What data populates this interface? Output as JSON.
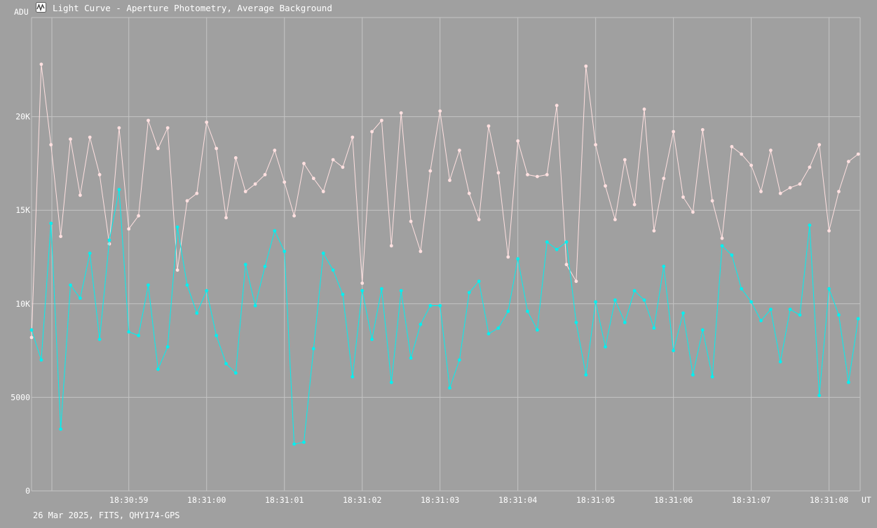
{
  "window": {
    "title": "Light Curve - Aperture Photometry, Average Background",
    "icon": "light-curve-app-icon"
  },
  "footer": {
    "text": "26 Mar 2025, FITS, QHY174-GPS"
  },
  "colors": {
    "background": "#a0a0a0",
    "grid": "#c4c4c4",
    "text": "#ffffff",
    "series_pink": "#ffe0e0",
    "series_cyan": "#00f0f0"
  },
  "chart_data": {
    "type": "line",
    "title": "Light Curve - Aperture Photometry, Average Background",
    "xlabel": "UT",
    "ylabel": "ADU",
    "ylim": [
      0,
      25300
    ],
    "xlim": [
      57.75,
      68.4
    ],
    "grid": true,
    "x_ticks": [
      {
        "value": 59,
        "label": "18:30:59"
      },
      {
        "value": 60,
        "label": "18:31:00"
      },
      {
        "value": 61,
        "label": "18:31:01"
      },
      {
        "value": 62,
        "label": "18:31:02"
      },
      {
        "value": 63,
        "label": "18:31:03"
      },
      {
        "value": 64,
        "label": "18:31:04"
      },
      {
        "value": 65,
        "label": "18:31:05"
      },
      {
        "value": 66,
        "label": "18:31:06"
      },
      {
        "value": 67,
        "label": "18:31:07"
      },
      {
        "value": 68,
        "label": "18:31:08"
      }
    ],
    "y_ticks": [
      {
        "value": 0,
        "label": "0"
      },
      {
        "value": 5000,
        "label": "5000"
      },
      {
        "value": 10000,
        "label": "10K"
      },
      {
        "value": 15000,
        "label": "15K"
      },
      {
        "value": 20000,
        "label": "20K"
      }
    ],
    "x": [
      57.75,
      57.875,
      58.0,
      58.125,
      58.25,
      58.375,
      58.5,
      58.625,
      58.75,
      58.875,
      59.0,
      59.125,
      59.25,
      59.375,
      59.5,
      59.625,
      59.75,
      59.875,
      60.0,
      60.125,
      60.25,
      60.375,
      60.5,
      60.625,
      60.75,
      60.875,
      61.0,
      61.125,
      61.25,
      61.375,
      61.5,
      61.625,
      61.75,
      61.875,
      62.0,
      62.125,
      62.25,
      62.375,
      62.5,
      62.625,
      62.75,
      62.875,
      63.0,
      63.125,
      63.25,
      63.375,
      63.5,
      63.625,
      63.75,
      63.875,
      64.0,
      64.125,
      64.25,
      64.375,
      64.5,
      64.625,
      64.75,
      64.875,
      65.0,
      65.125,
      65.25,
      65.375,
      65.5,
      65.625,
      65.75,
      65.875,
      66.0,
      66.125,
      66.25,
      66.375,
      66.5,
      66.625,
      66.75,
      66.875,
      67.0,
      67.125,
      67.25,
      67.375,
      67.5,
      67.625,
      67.75,
      67.875,
      68.0,
      68.125,
      68.25,
      68.375
    ],
    "series": [
      {
        "color": "#ffe0e0",
        "values": [
          8200,
          22800,
          18500,
          13600,
          18800,
          15800,
          18900,
          16900,
          13200,
          19400,
          14000,
          14700,
          19800,
          18300,
          19400,
          11800,
          15500,
          15900,
          19700,
          18300,
          14600,
          17800,
          16000,
          16400,
          16900,
          18200,
          16500,
          14700,
          17500,
          16700,
          16000,
          17700,
          17300,
          18900,
          11100,
          19200,
          19800,
          13100,
          20200,
          14400,
          12800,
          17100,
          20300,
          16600,
          18200,
          15900,
          14500,
          19500,
          17000,
          12500,
          18700,
          16900,
          16800,
          16900,
          20600,
          12100,
          11200,
          22700,
          18500,
          16300,
          14500,
          17700,
          15300,
          20400,
          13900,
          16700,
          19200,
          15700,
          14900,
          19300,
          15500,
          13500,
          18400,
          18000,
          17400,
          16000,
          18200,
          15900,
          16200,
          16400,
          17300,
          18500,
          13900,
          16000,
          17600,
          18000
        ]
      },
      {
        "color": "#00f0f0",
        "values": [
          8600,
          7000,
          14300,
          3300,
          11000,
          10300,
          12700,
          8100,
          13400,
          16100,
          8500,
          8300,
          11000,
          6500,
          7700,
          14100,
          11000,
          9500,
          10700,
          8300,
          6800,
          6300,
          12100,
          9900,
          12000,
          13900,
          12800,
          2500,
          2600,
          7600,
          12700,
          11800,
          10500,
          6100,
          10700,
          8100,
          10800,
          5800,
          10700,
          7100,
          8900,
          9900,
          9900,
          5500,
          7000,
          10600,
          11200,
          8400,
          8700,
          9600,
          12400,
          9600,
          8600,
          13300,
          12900,
          13300,
          9000,
          6200,
          10100,
          7700,
          10200,
          9000,
          10700,
          10200,
          8700,
          12000,
          7500,
          9500,
          6200,
          8600,
          6100,
          13100,
          12600,
          10800,
          10100,
          9100,
          9700,
          6900,
          9700,
          9400,
          14200,
          5100,
          10800,
          9400,
          5800,
          9200
        ]
      }
    ]
  },
  "axis_labels": {
    "y_unit": "ADU",
    "x_unit": "UT"
  }
}
